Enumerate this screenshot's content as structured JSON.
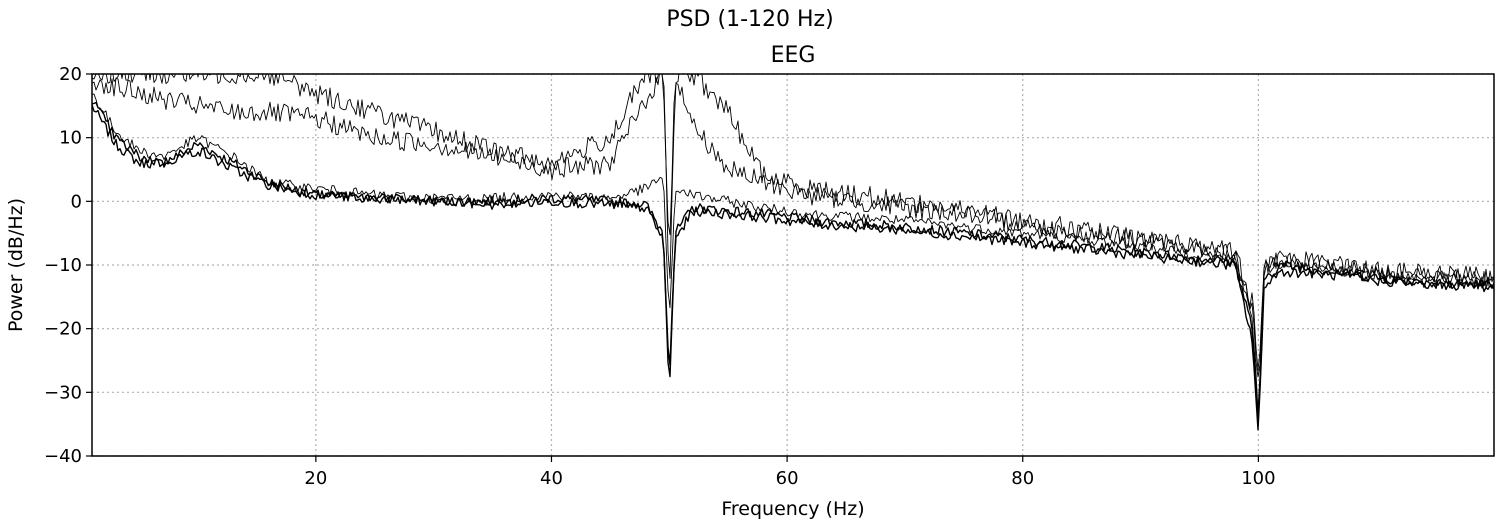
{
  "chart_data": {
    "type": "line",
    "suptitle": "PSD (1-120 Hz)",
    "title": "EEG",
    "xlabel": "Frequency (Hz)",
    "ylabel": "Power (dB/Hz)",
    "xlim": [
      1,
      120
    ],
    "ylim": [
      -40,
      20
    ],
    "xticks": [
      20,
      40,
      60,
      80,
      100
    ],
    "xtick_labels": [
      "20",
      "40",
      "60",
      "80",
      "100"
    ],
    "yticks": [
      20,
      10,
      0,
      -10,
      -20,
      -30,
      -40
    ],
    "ytick_labels": [
      "20",
      "10",
      "0",
      "−10",
      "−20",
      "−30",
      "−40"
    ],
    "grid": true,
    "line_color": "#000000",
    "series": [
      {
        "x": [
          1,
          3,
          5,
          7,
          10,
          13,
          16,
          20,
          25,
          30,
          35,
          40,
          45,
          48,
          49.5,
          50,
          50.5,
          52,
          55,
          58,
          62,
          66,
          70,
          75,
          80,
          85,
          90,
          95,
          98,
          99.5,
          100,
          100.5,
          102,
          106,
          110,
          115,
          120
        ],
        "values": [
          15,
          9,
          6,
          6,
          9,
          6,
          3,
          1,
          0.5,
          0,
          0,
          0.5,
          0,
          -0.5,
          -5,
          -30,
          -5,
          -1,
          -1.5,
          -2,
          -3,
          -3.5,
          -4,
          -5,
          -6,
          -7,
          -8,
          -9,
          -9.5,
          -20,
          -36,
          -12,
          -10,
          -11,
          -12,
          -13,
          -13
        ]
      },
      {
        "x": [
          1,
          3,
          5,
          7,
          10,
          13,
          16,
          20,
          25,
          30,
          35,
          40,
          45,
          48,
          49.5,
          50,
          50.5,
          52,
          55,
          58,
          62,
          66,
          70,
          75,
          80,
          85,
          90,
          95,
          98,
          99.5,
          100,
          100.5,
          102,
          106,
          110,
          115,
          120
        ],
        "values": [
          16,
          10,
          7,
          6,
          8,
          5,
          2.5,
          1,
          0.5,
          0,
          -0.5,
          0,
          -0.5,
          -1,
          -6,
          -28,
          -6,
          -1.5,
          -2,
          -2.5,
          -3.5,
          -4,
          -4.5,
          -5.5,
          -6.5,
          -7.5,
          -8.5,
          -9.5,
          -10,
          -22,
          -37,
          -13,
          -11,
          -11.5,
          -12.5,
          -13,
          -13.5
        ]
      },
      {
        "x": [
          1,
          3,
          5,
          7,
          10,
          13,
          16,
          20,
          25,
          30,
          35,
          40,
          45,
          48,
          49.5,
          50,
          50.5,
          52,
          55,
          58,
          62,
          66,
          70,
          75,
          80,
          85,
          90,
          95,
          98,
          99.5,
          100,
          100.5,
          102,
          106,
          110,
          115,
          120
        ],
        "values": [
          17,
          11,
          8,
          7,
          10,
          7,
          3,
          2,
          1,
          0.5,
          0.5,
          1,
          0.5,
          2,
          4,
          -20,
          2,
          1,
          0,
          -1,
          -2,
          -2.5,
          -3,
          -4,
          -5,
          -6,
          -7,
          -8.5,
          -9,
          -18,
          -34,
          -11,
          -9.5,
          -10.5,
          -11.5,
          -12,
          -12.5
        ]
      },
      {
        "x": [
          1,
          3,
          5,
          7,
          10,
          13,
          16,
          20,
          25,
          30,
          35,
          40,
          45,
          48,
          49.5,
          50,
          50.5,
          52,
          55,
          58,
          62,
          66,
          70,
          75,
          80,
          85,
          90,
          95,
          98,
          99.5,
          100,
          100.5,
          102,
          106,
          110,
          115,
          120
        ],
        "values": [
          19,
          18,
          17,
          16,
          15,
          14,
          14,
          13,
          10,
          9,
          7,
          5,
          6,
          16,
          20,
          -15,
          20,
          12,
          5,
          3,
          1,
          0,
          -1,
          -2,
          -3.5,
          -5,
          -6,
          -7.5,
          -8.5,
          -17,
          -30,
          -11,
          -9,
          -10,
          -11,
          -12,
          -12.5
        ]
      },
      {
        "x": [
          1,
          3,
          5,
          7,
          10,
          13,
          16,
          20,
          25,
          30,
          35,
          40,
          45,
          48,
          49.5,
          50,
          50.5,
          52,
          55,
          58,
          62,
          66,
          70,
          75,
          80,
          85,
          90,
          95,
          98,
          99.5,
          100,
          100.5,
          102,
          106,
          110,
          115,
          120
        ],
        "values": [
          20,
          20,
          20,
          20,
          20,
          20,
          20,
          17,
          14,
          11,
          8,
          6,
          10,
          20,
          20,
          -10,
          20,
          20,
          14,
          4,
          2,
          1,
          0,
          -1.5,
          -3,
          -4.5,
          -6,
          -7,
          -8,
          -16,
          -28,
          -10,
          -9,
          -10,
          -11,
          -11.5,
          -12
        ]
      }
    ]
  }
}
